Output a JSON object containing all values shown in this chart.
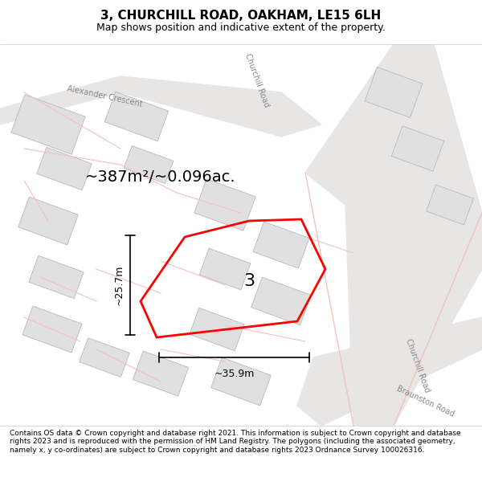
{
  "title": "3, CHURCHILL ROAD, OAKHAM, LE15 6LH",
  "subtitle": "Map shows position and indicative extent of the property.",
  "footer": "Contains OS data © Crown copyright and database right 2021. This information is subject to Crown copyright and database rights 2023 and is reproduced with the permission of HM Land Registry. The polygons (including the associated geometry, namely x, y co-ordinates) are subject to Crown copyright and database rights 2023 Ordnance Survey 100026316.",
  "area_text": "~387m²/~0.096ac.",
  "width_label": "~35.9m",
  "height_label": "~25.7m",
  "property_label": "3",
  "bg_color": "#f0eeee",
  "map_bg": "#f7f7f7",
  "property_color": "red",
  "property_lw": 2.0,
  "road_color_light": "#f5c0c0",
  "road_color_gray": "#d0d0d0",
  "building_color": "#e0e0e0",
  "building_edge": "#b0b0b0"
}
